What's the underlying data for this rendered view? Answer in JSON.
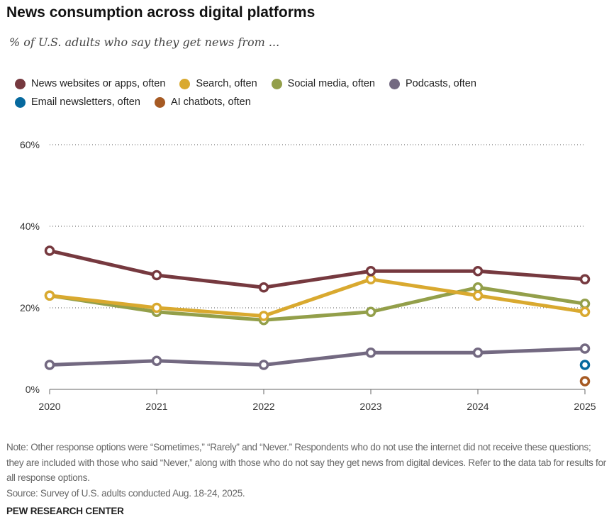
{
  "chart_data": {
    "type": "line",
    "title": "News consumption across digital platforms",
    "subtitle": "% of U.S. adults who say they get news from ...",
    "x": [
      "2020",
      "2021",
      "2022",
      "2023",
      "2024",
      "2025"
    ],
    "xlabel": "",
    "ylabel": "",
    "ylim": [
      0,
      60
    ],
    "yticks": [
      0,
      20,
      40,
      60
    ],
    "ytick_labels": [
      "0%",
      "20%",
      "40%",
      "60%"
    ],
    "grid": true,
    "legend_position": "top-left",
    "series": [
      {
        "name": "News websites or apps, often",
        "color": "#76393F",
        "values": [
          34,
          28,
          25,
          29,
          29,
          27
        ]
      },
      {
        "name": "Search, often",
        "color": "#D9A92F",
        "values": [
          23,
          20,
          18,
          27,
          23,
          19
        ]
      },
      {
        "name": "Social media, often",
        "color": "#939F4A",
        "values": [
          23,
          19,
          17,
          19,
          25,
          21
        ]
      },
      {
        "name": "Podcasts, often",
        "color": "#736981",
        "values": [
          6,
          7,
          6,
          9,
          9,
          10
        ]
      },
      {
        "name": "Email newsletters, often",
        "color": "#06699E",
        "values": [
          null,
          null,
          null,
          null,
          null,
          6
        ]
      },
      {
        "name": "AI chatbots, often",
        "color": "#A65A23",
        "values": [
          null,
          null,
          null,
          null,
          null,
          2
        ]
      }
    ]
  },
  "legend": {
    "rows": [
      [
        0,
        1,
        2,
        3
      ],
      [
        4,
        5
      ]
    ]
  },
  "notes": {
    "note": "Note: Other response options were “Sometimes,” “Rarely” and “Never.” Respondents who do not use the internet did not receive these questions; they are included with those who said “Never,” along with those who do not say they get news from digital devices. Refer to the data tab for results for all response options.",
    "source": "Source: Survey of U.S. adults conducted Aug. 18-24, 2025."
  },
  "brand": "PEW RESEARCH CENTER"
}
